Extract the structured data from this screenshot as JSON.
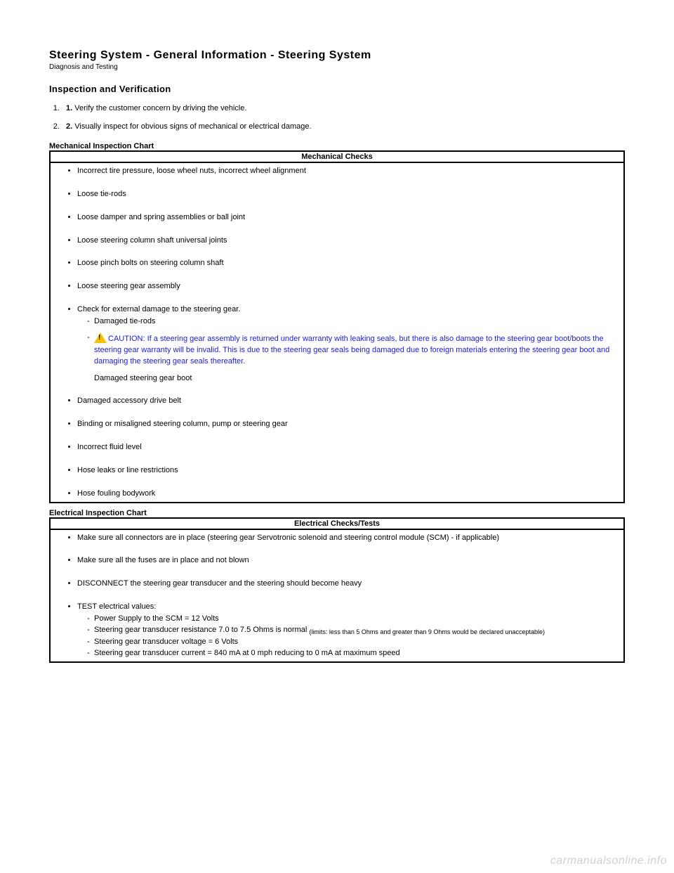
{
  "header": {
    "title": "Steering System - General Information - Steering System",
    "subtitle": "Diagnosis and Testing"
  },
  "section_title": "Inspection and Verification",
  "steps": [
    {
      "num": "1.",
      "bold": "1.",
      "text": " Verify the customer concern by driving the vehicle."
    },
    {
      "num": "2.",
      "bold": "2.",
      "text": " Visually inspect for obvious signs of mechanical or electrical damage."
    }
  ],
  "mech_chart": {
    "title": "Mechanical Inspection Chart",
    "header": "Mechanical Checks",
    "items": {
      "i0": "Incorrect tire pressure, loose wheel nuts, incorrect wheel alignment",
      "i1": "Loose tie-rods",
      "i2": "Loose damper and spring assemblies or ball joint",
      "i3": "Loose steering column shaft universal joints",
      "i4": "Loose pinch bolts on steering column shaft",
      "i5": "Loose steering gear assembly",
      "i6": "Check for external damage to the steering gear.",
      "i6_sub0": "Damaged tie-rods",
      "i6_caution": "CAUTION: If a steering gear assembly is returned under warranty with leaking seals, but there is also damage to the steering gear boot/boots the steering gear warranty will be invalid. This is due to the steering gear seals being damaged due to foreign materials entering the steering gear boot and damaging the steering gear seals thereafter.",
      "i6_after": "Damaged steering gear boot",
      "i7": "Damaged accessory drive belt",
      "i8": "Binding or misaligned steering column, pump or steering gear",
      "i9": "Incorrect fluid level",
      "i10": "Hose leaks or line restrictions",
      "i11": "Hose fouling bodywork"
    }
  },
  "elec_chart": {
    "title": "Electrical Inspection Chart",
    "header": "Electrical Checks/Tests",
    "items": {
      "e0": "Make sure all connectors are in place (steering gear Servotronic solenoid and steering control module (SCM) - if applicable)",
      "e1": "Make sure all the fuses are in place and not blown",
      "e2": "DISCONNECT the steering gear transducer and the steering should become heavy",
      "e3": "TEST electrical values:",
      "e3_sub0": "Power Supply to the SCM = 12 Volts",
      "e3_sub1a": "Steering gear transducer resistance 7.0 to 7.5 Ohms is normal ",
      "e3_sub1b": "(limits: less than 5 Ohms and greater than 9 Ohms would be declared unacceptable)",
      "e3_sub2": "Steering gear transducer voltage = 6 Volts",
      "e3_sub3": "Steering gear transducer current = 840 mA at 0 mph reducing to 0 mA at maximum speed"
    }
  },
  "watermark": "carmanualsonline.info",
  "colors": {
    "caution_text": "#1a1adf",
    "icon_fill": "#f6c200",
    "border": "#000000",
    "bg": "#ffffff"
  }
}
